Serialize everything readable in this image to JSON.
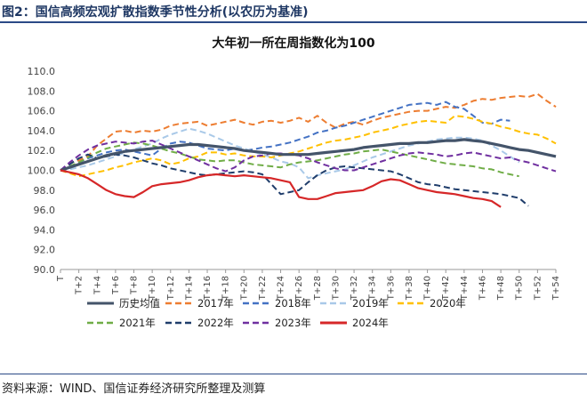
{
  "header": {
    "figure_label": "图2：国信高频宏观扩散指数季节性分析(以农历为基准)"
  },
  "footer": {
    "source": "资料来源：WIND、国信证券经济研究所整理及测算"
  },
  "chart_data": {
    "type": "line",
    "title": "大年初一所在周指数化为100",
    "xlabel": "",
    "ylabel": "",
    "ylim": [
      90,
      110
    ],
    "yticks": [
      "90.0",
      "92.0",
      "94.0",
      "96.0",
      "98.0",
      "100.0",
      "102.0",
      "104.0",
      "106.0",
      "108.0",
      "110.0"
    ],
    "x_categories": [
      "T",
      "T+1",
      "T+2",
      "T+3",
      "T+4",
      "T+5",
      "T+6",
      "T+7",
      "T+8",
      "T+9",
      "T+10",
      "T+11",
      "T+12",
      "T+13",
      "T+14",
      "T+15",
      "T+16",
      "T+17",
      "T+18",
      "T+19",
      "T+20",
      "T+21",
      "T+22",
      "T+23",
      "T+24",
      "T+25",
      "T+26",
      "T+27",
      "T+28",
      "T+29",
      "T+30",
      "T+31",
      "T+32",
      "T+33",
      "T+34",
      "T+35",
      "T+36",
      "T+37",
      "T+38",
      "T+39",
      "T+40",
      "T+41",
      "T+42",
      "T+43",
      "T+44",
      "T+45",
      "T+46",
      "T+47",
      "T+48",
      "T+49",
      "T+50",
      "T+51",
      "T+52",
      "T+53",
      "T+54"
    ],
    "x_tick_labels": [
      "T",
      "T+2",
      "T+4",
      "T+6",
      "T+8",
      "T+10",
      "T+12",
      "T+14",
      "T+16",
      "T+18",
      "T+20",
      "T+22",
      "T+24",
      "T+26",
      "T+28",
      "T+30",
      "T+32",
      "T+34",
      "T+36",
      "T+38",
      "T+40",
      "T+42",
      "T+44",
      "T+46",
      "T+48",
      "T+50",
      "T+52",
      "T+54"
    ],
    "grid": false,
    "legend_position": "bottom",
    "series": [
      {
        "name": "历史均值",
        "color": "#44546a",
        "dash": "solid",
        "width": 3.2,
        "values": [
          100,
          100.3,
          100.6,
          100.9,
          101.2,
          101.5,
          101.7,
          101.9,
          102.0,
          102.1,
          102.2,
          102.3,
          102.4,
          102.5,
          102.6,
          102.6,
          102.5,
          102.4,
          102.3,
          102.2,
          102.0,
          101.9,
          101.8,
          101.7,
          101.6,
          101.6,
          101.6,
          101.6,
          101.7,
          101.8,
          101.9,
          102.0,
          102.1,
          102.3,
          102.4,
          102.5,
          102.6,
          102.7,
          102.7,
          102.8,
          102.8,
          102.9,
          103.0,
          103.0,
          103.1,
          103.0,
          102.9,
          102.7,
          102.5,
          102.3,
          102.1,
          102.0,
          101.8,
          101.6,
          101.4
        ]
      },
      {
        "name": "2017年",
        "color": "#ed7d31",
        "dash": "dashed",
        "width": 2,
        "values": [
          100,
          100.7,
          101.0,
          101.4,
          102.5,
          103.2,
          103.9,
          104.0,
          103.8,
          104.0,
          103.9,
          104.1,
          104.5,
          104.7,
          104.8,
          104.9,
          104.5,
          104.7,
          104.9,
          105.1,
          104.8,
          104.6,
          104.9,
          105.0,
          104.8,
          105.0,
          105.3,
          104.9,
          105.5,
          104.8,
          104.3,
          104.7,
          104.9,
          104.6,
          105.0,
          105.3,
          105.5,
          105.7,
          105.9,
          106.0,
          106.0,
          106.2,
          106.4,
          106.3,
          106.6,
          107.0,
          107.2,
          107.1,
          107.3,
          107.4,
          107.5,
          107.4,
          107.7,
          107.0,
          106.4
        ]
      },
      {
        "name": "2018年",
        "color": "#4472c4",
        "dash": "dashed",
        "width": 2,
        "values": [
          100,
          100.3,
          100.8,
          101.2,
          101.5,
          101.8,
          102.0,
          102.1,
          101.9,
          101.7,
          101.5,
          102.2,
          102.7,
          102.9,
          102.8,
          102.5,
          102.2,
          102.1,
          102.0,
          102.2,
          102.0,
          102.1,
          102.3,
          102.4,
          102.6,
          102.8,
          103.1,
          103.4,
          103.8,
          104.0,
          104.3,
          104.5,
          104.8,
          105.1,
          105.4,
          105.7,
          106.0,
          106.3,
          106.6,
          106.7,
          106.8,
          106.6,
          106.9,
          106.4,
          106.2,
          105.5,
          104.8,
          104.7,
          105.1,
          105.0,
          null,
          null,
          null,
          null,
          null
        ]
      },
      {
        "name": "2019年",
        "color": "#a9c9e8",
        "dash": "dashed",
        "width": 2,
        "values": [
          100,
          100.1,
          100.3,
          100.5,
          100.8,
          101.1,
          101.4,
          101.8,
          102.1,
          102.4,
          102.7,
          103.2,
          103.6,
          103.9,
          104.2,
          104.0,
          103.7,
          103.3,
          102.9,
          102.5,
          102.2,
          101.9,
          101.6,
          101.3,
          100.9,
          100.7,
          100.3,
          99.2,
          99.5,
          99.7,
          99.9,
          100.1,
          100.5,
          100.9,
          101.3,
          101.6,
          101.9,
          102.2,
          102.5,
          102.7,
          102.9,
          103.1,
          103.2,
          103.3,
          103.3,
          103.2,
          103.0,
          102.5,
          102.0,
          101.4,
          100.8,
          null,
          null,
          null,
          null
        ]
      },
      {
        "name": "2020年",
        "color": "#ffc000",
        "dash": "dashed",
        "width": 2,
        "values": [
          100,
          99.7,
          99.4,
          99.6,
          99.8,
          100.0,
          100.3,
          100.5,
          100.8,
          101.0,
          101.2,
          101.0,
          100.6,
          100.8,
          101.2,
          101.4,
          101.8,
          101.8,
          101.6,
          101.7,
          101.5,
          101.4,
          101.4,
          101.3,
          101.5,
          101.7,
          101.9,
          102.2,
          102.5,
          102.8,
          103.0,
          103.1,
          103.3,
          103.5,
          103.8,
          104.0,
          104.2,
          104.5,
          104.7,
          104.9,
          105.0,
          104.9,
          104.8,
          105.5,
          105.4,
          105.2,
          104.9,
          104.7,
          104.4,
          104.2,
          103.9,
          103.7,
          103.6,
          103.2,
          102.7
        ]
      },
      {
        "name": "2021年",
        "color": "#70ad47",
        "dash": "dashed",
        "width": 2,
        "values": [
          100,
          100.4,
          100.8,
          101.3,
          101.8,
          102.2,
          102.4,
          102.6,
          102.8,
          102.7,
          102.5,
          102.2,
          101.9,
          101.7,
          101.4,
          101.1,
          101.0,
          100.9,
          101.0,
          101.0,
          100.8,
          100.6,
          100.5,
          100.4,
          100.3,
          100.6,
          100.8,
          100.9,
          101.0,
          101.2,
          101.4,
          101.6,
          101.7,
          101.9,
          102.0,
          102.1,
          101.9,
          101.7,
          101.5,
          101.3,
          101.1,
          100.9,
          100.7,
          100.6,
          100.5,
          100.4,
          100.2,
          100.1,
          99.8,
          99.6,
          99.4,
          null,
          null,
          null,
          null
        ]
      },
      {
        "name": "2022年",
        "color": "#1f3d6b",
        "dash": "dashed",
        "width": 2,
        "values": [
          100,
          100.6,
          101.2,
          101.6,
          101.2,
          101.4,
          101.6,
          101.5,
          101.3,
          101.0,
          100.7,
          100.5,
          100.2,
          100.0,
          99.8,
          99.6,
          99.5,
          99.6,
          99.7,
          99.8,
          99.9,
          99.8,
          99.6,
          98.6,
          97.6,
          97.8,
          98.0,
          98.8,
          99.5,
          100.0,
          100.3,
          100.4,
          100.3,
          100.2,
          100.1,
          100.0,
          99.9,
          99.6,
          99.2,
          98.8,
          98.6,
          98.5,
          98.3,
          98.1,
          98.0,
          97.9,
          97.8,
          97.7,
          97.6,
          97.4,
          97.2,
          96.4,
          null,
          null,
          null
        ]
      },
      {
        "name": "2023年",
        "color": "#7030a0",
        "dash": "dashed",
        "width": 2,
        "values": [
          100,
          100.8,
          101.5,
          102.1,
          102.5,
          102.7,
          102.9,
          102.8,
          102.7,
          102.9,
          103.0,
          102.6,
          102.2,
          101.8,
          101.4,
          101.0,
          100.6,
          100.2,
          99.9,
          100.3,
          101.0,
          101.4,
          101.5,
          101.7,
          101.7,
          101.6,
          101.5,
          101.2,
          100.8,
          100.5,
          100.2,
          100.0,
          100.0,
          100.3,
          100.6,
          100.9,
          101.2,
          101.5,
          101.7,
          101.8,
          101.7,
          101.6,
          101.4,
          101.5,
          101.7,
          101.8,
          101.6,
          101.4,
          101.2,
          101.3,
          101.0,
          100.8,
          100.5,
          100.2,
          99.9
        ]
      },
      {
        "name": "2024年",
        "color": "#d62728",
        "dash": "solid",
        "width": 2.2,
        "values": [
          100,
          99.8,
          99.6,
          99.2,
          98.6,
          98.0,
          97.6,
          97.4,
          97.3,
          97.8,
          98.4,
          98.6,
          98.7,
          98.8,
          99.0,
          99.3,
          99.5,
          99.6,
          99.5,
          99.4,
          99.5,
          99.4,
          99.3,
          99.2,
          99.0,
          98.8,
          97.3,
          97.1,
          97.1,
          97.4,
          97.7,
          97.8,
          97.9,
          98.0,
          98.4,
          98.9,
          99.1,
          99.0,
          98.6,
          98.2,
          98.0,
          97.8,
          97.7,
          97.6,
          97.4,
          97.2,
          97.1,
          96.9,
          96.3,
          null,
          null,
          null,
          null,
          null,
          null
        ]
      }
    ]
  }
}
